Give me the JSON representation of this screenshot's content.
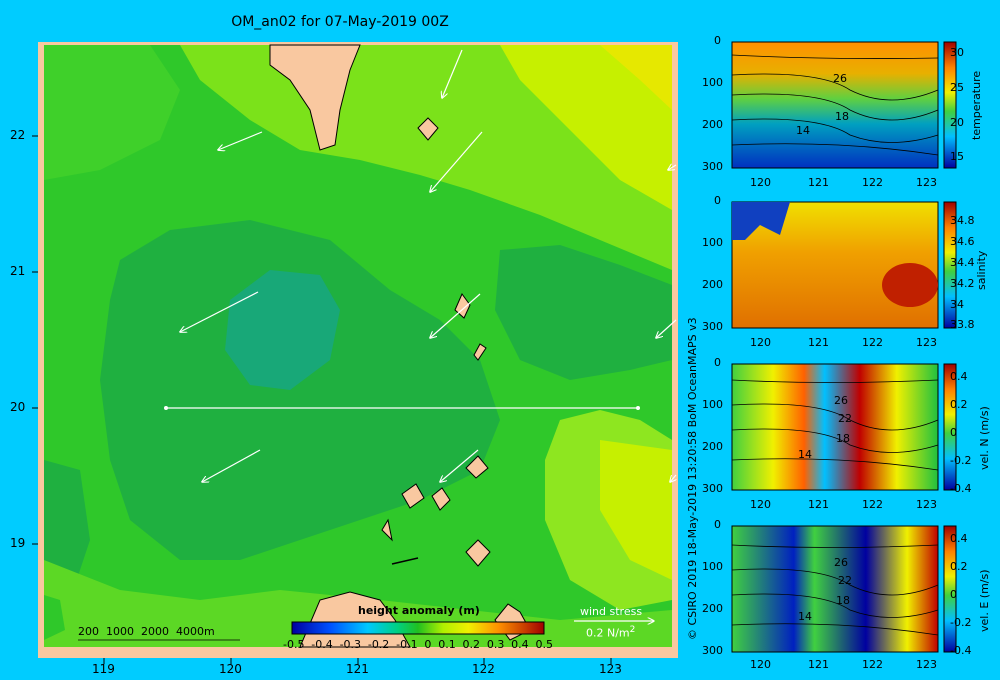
{
  "title": "OM_an02 for 07-May-2019 00Z",
  "map": {
    "lon_ticks": [
      "119",
      "120",
      "121",
      "122",
      "123"
    ],
    "lat_ticks": [
      "22",
      "21",
      "20",
      "19"
    ],
    "depth_legend": "200  1000  2000  4000m",
    "colorbar_title": "height anomaly (m)",
    "colorbar_ticks": [
      "-0.5",
      "-0.4",
      "-0.3",
      "-0.2",
      "-0.1",
      "0",
      "0.1",
      "0.2",
      "0.3",
      "0.4",
      "0.5"
    ],
    "wind_stress_label": "wind stress",
    "wind_stress_scale": "0.2 N/m",
    "wind_stress_sup": "2"
  },
  "credit": "© CSIRO 2019   18-May-2019 13:20:58 BoM OceanMAPS v3",
  "panels": [
    {
      "id": "temperature",
      "cbar_label": "temperature",
      "cbar_ticks": [
        "30",
        "25",
        "20",
        "15"
      ],
      "depth_ticks": [
        "0",
        "100",
        "200",
        "300"
      ],
      "lon_ticks": [
        "120",
        "121",
        "122",
        "123"
      ],
      "contour_labels": [
        "26",
        "18",
        "14"
      ]
    },
    {
      "id": "salinity",
      "cbar_label": "salinity",
      "cbar_ticks": [
        "34.8",
        "34.6",
        "34.4",
        "34.2",
        "34",
        "33.8"
      ],
      "depth_ticks": [
        "0",
        "100",
        "200",
        "300"
      ],
      "lon_ticks": [
        "120",
        "121",
        "122",
        "123"
      ],
      "contour_labels": []
    },
    {
      "id": "veln",
      "cbar_label": "vel. N (m/s)",
      "cbar_ticks": [
        "0.4",
        "0.2",
        "0",
        "-0.2",
        "-0.4"
      ],
      "depth_ticks": [
        "0",
        "100",
        "200",
        "300"
      ],
      "lon_ticks": [
        "120",
        "121",
        "122",
        "123"
      ],
      "contour_labels": [
        "26",
        "22",
        "18",
        "14"
      ]
    },
    {
      "id": "vele",
      "cbar_label": "vel. E (m/s)",
      "cbar_ticks": [
        "0.4",
        "0.2",
        "0",
        "-0.2",
        "-0.4"
      ],
      "depth_ticks": [
        "0",
        "100",
        "200",
        "300"
      ],
      "lon_ticks": [
        "120",
        "121",
        "122",
        "123"
      ],
      "contour_labels": [
        "26",
        "22",
        "18",
        "14"
      ]
    }
  ]
}
